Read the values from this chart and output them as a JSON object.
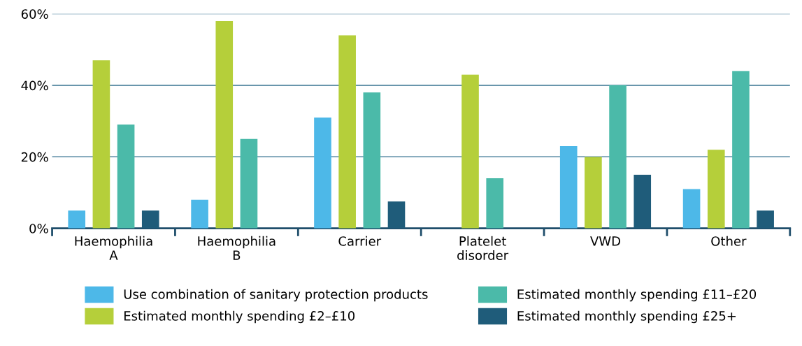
{
  "chart_data": {
    "type": "bar",
    "categories": [
      "Haemophilia\nA",
      "Haemophilia\nB",
      "Carrier",
      "Platelet\ndisorder",
      "VWD",
      "Other"
    ],
    "series": [
      {
        "name": "Use combination of sanitary protection products",
        "color": "#4db8e8",
        "values": [
          5,
          8,
          31,
          0,
          23,
          11
        ]
      },
      {
        "name": "Estimated monthly spending £2–£10",
        "color": "#b5cf3a",
        "values": [
          47,
          58,
          54,
          43,
          20,
          22
        ]
      },
      {
        "name": "Estimated monthly spending £11–£20",
        "color": "#4bbaa9",
        "values": [
          29,
          25,
          38,
          14,
          40,
          44
        ]
      },
      {
        "name": "Estimated monthly spending £25+",
        "color": "#1f5c7a",
        "values": [
          5,
          0,
          7.5,
          0,
          15,
          5
        ]
      }
    ],
    "ylim": [
      0,
      60
    ],
    "yticks": [
      {
        "value": 0,
        "label": "0%"
      },
      {
        "value": 20,
        "label": "20%"
      },
      {
        "value": 40,
        "label": "40%"
      },
      {
        "value": 60,
        "label": "60%"
      }
    ],
    "grid": "y",
    "legend": "bottom"
  }
}
